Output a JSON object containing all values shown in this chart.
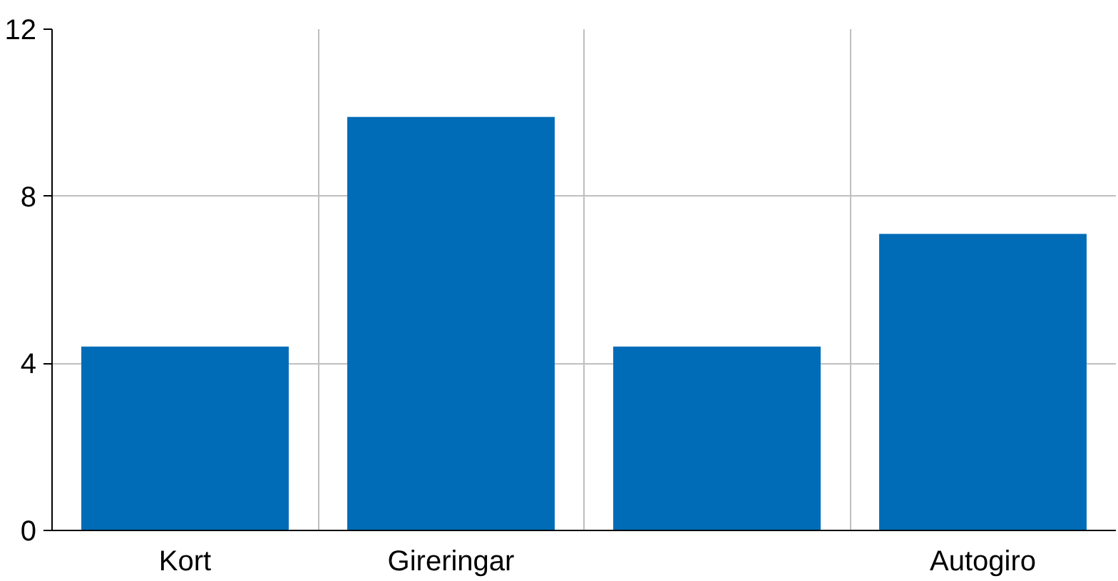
{
  "chart_data": {
    "type": "bar",
    "categories": [
      "Kort",
      "Gireringar",
      null,
      "Autogiro"
    ],
    "values": [
      4.4,
      9.9,
      4.4,
      7.1
    ],
    "color": "#006cb7",
    "ylim": [
      0,
      12
    ],
    "yticks": [
      0,
      4,
      8,
      12
    ],
    "grid": true
  }
}
